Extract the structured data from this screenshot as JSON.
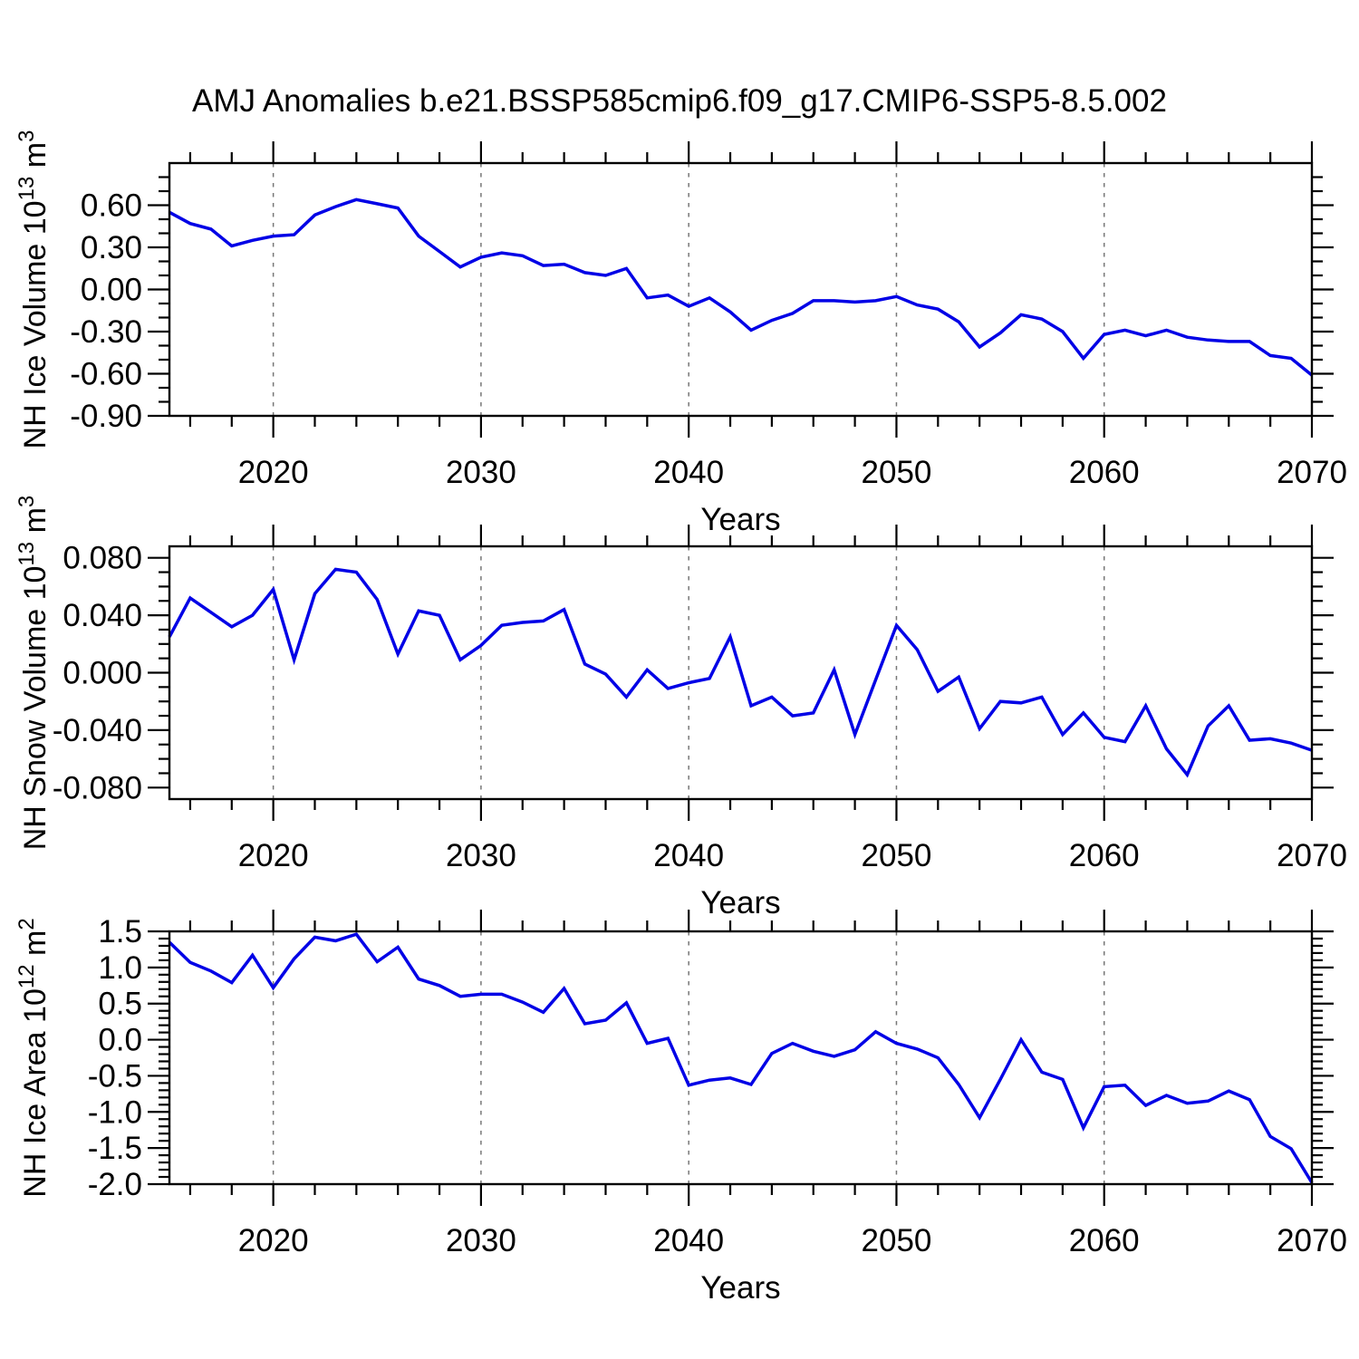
{
  "title": "AMJ Anomalies b.e21.BSSP585cmip6.f09_g17.CMIP6-SSP5-8.5.002",
  "xlabel": "Years",
  "chart_data": [
    {
      "type": "line",
      "name": "nh-ice-volume",
      "ylabel_text": "NH Ice Volume 10^13 m^3",
      "ylabel_parts": [
        {
          "t": "NH Ice Volume 10"
        },
        {
          "t": "13",
          "sup": true
        },
        {
          "t": " m"
        },
        {
          "t": "3",
          "sup": true
        }
      ],
      "line_color": "#0000E6",
      "grid_color": "#777777",
      "ylim": [
        -0.9,
        0.9
      ],
      "ytick_labels": [
        "0.60",
        "0.30",
        "0.00",
        "-0.30",
        "-0.60",
        "-0.90"
      ],
      "ytick_values": [
        0.6,
        0.3,
        0.0,
        -0.3,
        -0.6,
        -0.9
      ],
      "ytick_minor_step": 0.1,
      "xlim": [
        2015,
        2070
      ],
      "xtick_labels": [
        "2020",
        "2030",
        "2040",
        "2050",
        "2060",
        "2070"
      ],
      "xtick_values": [
        2020,
        2030,
        2040,
        2050,
        2060,
        2070
      ],
      "xtick_minor_step": 2,
      "gridline_years": [
        2020,
        2030,
        2040,
        2050,
        2060
      ],
      "years": [
        2015,
        2016,
        2017,
        2018,
        2019,
        2020,
        2021,
        2022,
        2023,
        2024,
        2025,
        2026,
        2027,
        2028,
        2029,
        2030,
        2031,
        2032,
        2033,
        2034,
        2035,
        2036,
        2037,
        2038,
        2039,
        2040,
        2041,
        2042,
        2043,
        2044,
        2045,
        2046,
        2047,
        2048,
        2049,
        2050,
        2051,
        2052,
        2053,
        2054,
        2055,
        2056,
        2057,
        2058,
        2059,
        2060,
        2061,
        2062,
        2063,
        2064,
        2065,
        2066,
        2067,
        2068,
        2069,
        2070
      ],
      "values": [
        0.55,
        0.47,
        0.43,
        0.31,
        0.35,
        0.38,
        0.39,
        0.53,
        0.59,
        0.64,
        0.61,
        0.58,
        0.38,
        0.27,
        0.16,
        0.23,
        0.26,
        0.24,
        0.17,
        0.18,
        0.12,
        0.1,
        0.15,
        -0.06,
        -0.04,
        -0.12,
        -0.06,
        -0.16,
        -0.29,
        -0.22,
        -0.17,
        -0.08,
        -0.08,
        -0.09,
        -0.08,
        -0.05,
        -0.11,
        -0.14,
        -0.23,
        -0.41,
        -0.31,
        -0.18,
        -0.21,
        -0.3,
        -0.49,
        -0.32,
        -0.29,
        -0.33,
        -0.29,
        -0.34,
        -0.36,
        -0.37,
        -0.37,
        -0.47,
        -0.49,
        -0.61
      ]
    },
    {
      "type": "line",
      "name": "nh-snow-volume",
      "ylabel_text": "NH Snow Volume 10^13 m^3",
      "ylabel_parts": [
        {
          "t": "NH Snow Volume 10"
        },
        {
          "t": "13",
          "sup": true
        },
        {
          "t": " m"
        },
        {
          "t": "3",
          "sup": true
        }
      ],
      "line_color": "#0000E6",
      "grid_color": "#777777",
      "ylim": [
        -0.088,
        0.088
      ],
      "ytick_labels": [
        "0.080",
        "0.040",
        "0.000",
        "-0.040",
        "-0.080"
      ],
      "ytick_values": [
        0.08,
        0.04,
        0.0,
        -0.04,
        -0.08
      ],
      "ytick_minor_step": 0.01,
      "xlim": [
        2015,
        2070
      ],
      "xtick_labels": [
        "2020",
        "2030",
        "2040",
        "2050",
        "2060",
        "2070"
      ],
      "xtick_values": [
        2020,
        2030,
        2040,
        2050,
        2060,
        2070
      ],
      "xtick_minor_step": 2,
      "gridline_years": [
        2020,
        2030,
        2040,
        2050,
        2060
      ],
      "years": [
        2015,
        2016,
        2017,
        2018,
        2019,
        2020,
        2021,
        2022,
        2023,
        2024,
        2025,
        2026,
        2027,
        2028,
        2029,
        2030,
        2031,
        2032,
        2033,
        2034,
        2035,
        2036,
        2037,
        2038,
        2039,
        2040,
        2041,
        2042,
        2043,
        2044,
        2045,
        2046,
        2047,
        2048,
        2049,
        2050,
        2051,
        2052,
        2053,
        2054,
        2055,
        2056,
        2057,
        2058,
        2059,
        2060,
        2061,
        2062,
        2063,
        2064,
        2065,
        2066,
        2067,
        2068,
        2069,
        2070
      ],
      "values": [
        0.025,
        0.052,
        0.042,
        0.032,
        0.04,
        0.058,
        0.009,
        0.055,
        0.072,
        0.07,
        0.051,
        0.013,
        0.043,
        0.04,
        0.009,
        0.019,
        0.033,
        0.035,
        0.036,
        0.044,
        0.006,
        -0.001,
        -0.017,
        0.002,
        -0.011,
        -0.007,
        -0.004,
        0.025,
        -0.023,
        -0.017,
        -0.03,
        -0.028,
        0.002,
        -0.043,
        -0.005,
        0.033,
        0.016,
        -0.013,
        -0.003,
        -0.039,
        -0.02,
        -0.021,
        -0.017,
        -0.043,
        -0.028,
        -0.045,
        -0.048,
        -0.023,
        -0.053,
        -0.071,
        -0.037,
        -0.023,
        -0.047,
        -0.046,
        -0.049,
        -0.054
      ]
    },
    {
      "type": "line",
      "name": "nh-ice-area",
      "ylabel_text": "NH Ice Area 10^12 m^2",
      "ylabel_parts": [
        {
          "t": "NH Ice Area 10"
        },
        {
          "t": "12",
          "sup": true
        },
        {
          "t": " m"
        },
        {
          "t": "2",
          "sup": true
        }
      ],
      "line_color": "#0000E6",
      "grid_color": "#777777",
      "ylim": [
        -2.0,
        1.5
      ],
      "ytick_labels": [
        "1.5",
        "1.0",
        "0.5",
        "0.0",
        "-0.5",
        "-1.0",
        "-1.5",
        "-2.0"
      ],
      "ytick_values": [
        1.5,
        1.0,
        0.5,
        0.0,
        -0.5,
        -1.0,
        -1.5,
        -2.0
      ],
      "ytick_minor_step": 0.1,
      "xlim": [
        2015,
        2070
      ],
      "xtick_labels": [
        "2020",
        "2030",
        "2040",
        "2050",
        "2060",
        "2070"
      ],
      "xtick_values": [
        2020,
        2030,
        2040,
        2050,
        2060,
        2070
      ],
      "xtick_minor_step": 2,
      "gridline_years": [
        2020,
        2030,
        2040,
        2050,
        2060
      ],
      "years": [
        2015,
        2016,
        2017,
        2018,
        2019,
        2020,
        2021,
        2022,
        2023,
        2024,
        2025,
        2026,
        2027,
        2028,
        2029,
        2030,
        2031,
        2032,
        2033,
        2034,
        2035,
        2036,
        2037,
        2038,
        2039,
        2040,
        2041,
        2042,
        2043,
        2044,
        2045,
        2046,
        2047,
        2048,
        2049,
        2050,
        2051,
        2052,
        2053,
        2054,
        2055,
        2056,
        2057,
        2058,
        2059,
        2060,
        2061,
        2062,
        2063,
        2064,
        2065,
        2066,
        2067,
        2068,
        2069,
        2070
      ],
      "values": [
        1.35,
        1.07,
        0.95,
        0.79,
        1.17,
        0.72,
        1.12,
        1.42,
        1.37,
        1.46,
        1.08,
        1.28,
        0.84,
        0.75,
        0.6,
        0.63,
        0.63,
        0.52,
        0.38,
        0.71,
        0.22,
        0.27,
        0.51,
        -0.05,
        0.02,
        -0.63,
        -0.56,
        -0.53,
        -0.62,
        -0.19,
        -0.05,
        -0.16,
        -0.23,
        -0.14,
        0.11,
        -0.05,
        -0.13,
        -0.25,
        -0.62,
        -1.08,
        -0.55,
        0.0,
        -0.45,
        -0.55,
        -1.22,
        -0.65,
        -0.63,
        -0.91,
        -0.77,
        -0.88,
        -0.85,
        -0.71,
        -0.83,
        -1.34,
        -1.51,
        -1.98
      ]
    }
  ]
}
